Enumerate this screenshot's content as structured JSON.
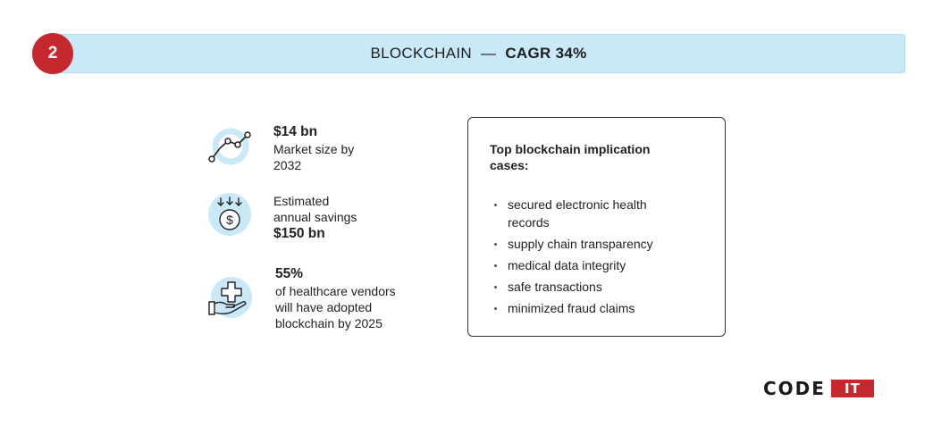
{
  "header": {
    "step_number": "2",
    "title": "BLOCKCHAIN",
    "separator": "—",
    "cagr": "CAGR 34%"
  },
  "stats": [
    {
      "icon": "line-chart-icon",
      "value": "$14 bn",
      "text_lines": [
        "Market size by",
        "2032"
      ]
    },
    {
      "icon": "coin-savings-icon",
      "text_lines": [
        "Estimated",
        "annual savings"
      ],
      "value": "$150 bn"
    },
    {
      "icon": "hand-medical-cross-icon",
      "value": "55%",
      "text_lines": [
        "of healthcare vendors",
        "will have adopted",
        "blockchain by 2025"
      ]
    }
  ],
  "panel": {
    "title_lines": [
      "Top blockchain implication",
      "cases:"
    ],
    "items": [
      [
        "secured electronic health",
        "records"
      ],
      [
        "supply chain transparency"
      ],
      [
        "medical data integrity"
      ],
      [
        "safe transactions"
      ],
      [
        "minimized fraud claims"
      ]
    ]
  },
  "logo": {
    "word": "CODE",
    "badge": "IT"
  },
  "colors": {
    "accent_red": "#c7282d",
    "banner_blue": "#c9e8f8",
    "icon_blue": "#c9e8f8"
  }
}
